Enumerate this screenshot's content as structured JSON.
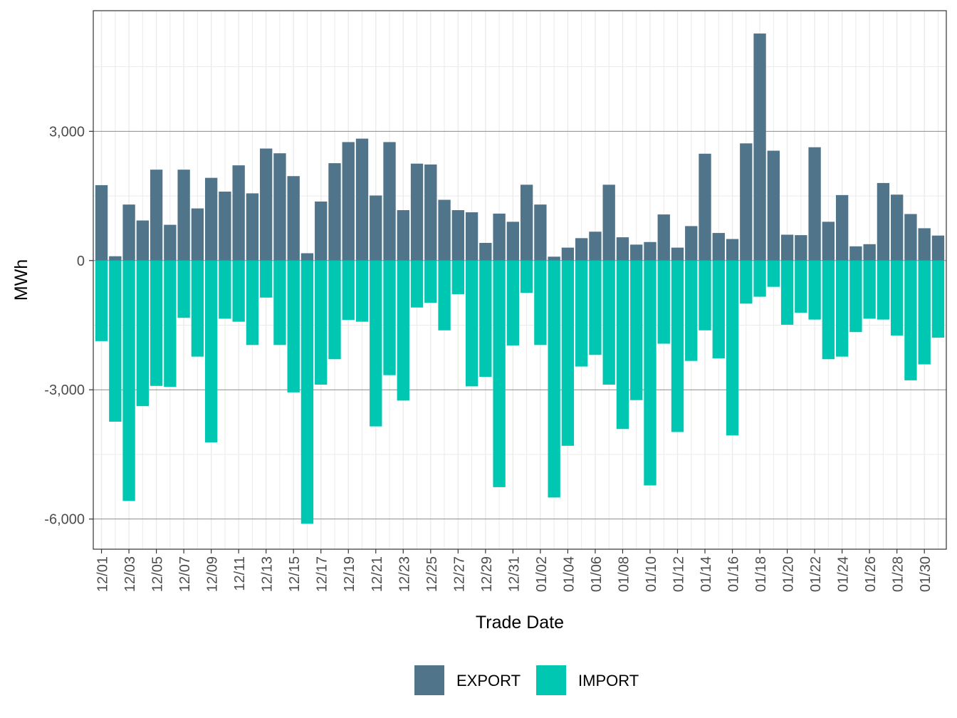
{
  "chart_data": {
    "type": "bar",
    "xlabel": "Trade Date",
    "ylabel": "MWh",
    "ylim": [
      -6700,
      5800
    ],
    "yticks": [
      3000,
      0,
      -3000,
      -6000
    ],
    "ytick_labels": [
      "3,000",
      "0",
      "-3,000",
      "-6,000"
    ],
    "categories": [
      "12/01",
      "12/02",
      "12/03",
      "12/04",
      "12/05",
      "12/06",
      "12/07",
      "12/08",
      "12/09",
      "12/10",
      "12/11",
      "12/12",
      "12/13",
      "12/14",
      "12/15",
      "12/16",
      "12/17",
      "12/18",
      "12/19",
      "12/20",
      "12/21",
      "12/22",
      "12/23",
      "12/24",
      "12/25",
      "12/26",
      "12/27",
      "12/28",
      "12/29",
      "12/30",
      "12/31",
      "01/01",
      "01/02",
      "01/03",
      "01/04",
      "01/05",
      "01/06",
      "01/07",
      "01/08",
      "01/09",
      "01/10",
      "01/11",
      "01/12",
      "01/13",
      "01/14",
      "01/15",
      "01/16",
      "01/17",
      "01/18",
      "01/19",
      "01/20",
      "01/21",
      "01/22",
      "01/23",
      "01/24",
      "01/25",
      "01/26",
      "01/27",
      "01/28",
      "01/29",
      "01/30",
      "01/31"
    ],
    "xtick_labels": [
      "12/01",
      "12/03",
      "12/05",
      "12/07",
      "12/09",
      "12/11",
      "12/13",
      "12/15",
      "12/17",
      "12/19",
      "12/21",
      "12/23",
      "12/25",
      "12/27",
      "12/29",
      "12/31",
      "01/02",
      "01/04",
      "01/06",
      "01/08",
      "01/10",
      "01/12",
      "01/14",
      "01/16",
      "01/18",
      "01/20",
      "01/22",
      "01/24",
      "01/26",
      "01/28",
      "01/30"
    ],
    "series": [
      {
        "name": "EXPORT",
        "color": "#50748a",
        "values": [
          1750,
          100,
          1300,
          930,
          2110,
          830,
          2110,
          1210,
          1920,
          1600,
          2210,
          1560,
          2600,
          2490,
          1960,
          170,
          1370,
          2260,
          2750,
          2830,
          1510,
          2750,
          1170,
          2250,
          2230,
          1410,
          1170,
          1120,
          410,
          1090,
          900,
          1760,
          1300,
          90,
          300,
          520,
          670,
          1760,
          540,
          370,
          430,
          1070,
          300,
          800,
          2480,
          640,
          500,
          2720,
          5270,
          2550,
          600,
          590,
          2630,
          900,
          1520,
          330,
          380,
          1800,
          1530,
          1080,
          750,
          580
        ]
      },
      {
        "name": "IMPORT",
        "color": "#00c7b1",
        "values": [
          -1870,
          -3740,
          -5580,
          -3380,
          -2910,
          -2930,
          -1330,
          -2230,
          -4220,
          -1350,
          -1420,
          -1960,
          -860,
          -1960,
          -3060,
          -6110,
          -2880,
          -2290,
          -1380,
          -1420,
          -3850,
          -2660,
          -3250,
          -1090,
          -980,
          -1620,
          -780,
          -2920,
          -2700,
          -5260,
          -1970,
          -750,
          -1960,
          -5500,
          -4300,
          -2460,
          -2190,
          -2880,
          -3910,
          -3240,
          -5220,
          -1930,
          -3980,
          -2330,
          -1620,
          -2270,
          -4060,
          -1000,
          -840,
          -610,
          -1490,
          -1210,
          -1370,
          -2290,
          -2230,
          -1660,
          -1350,
          -1370,
          -1740,
          -2780,
          -2410,
          -1790
        ]
      }
    ],
    "legend_position": "bottom",
    "grid": true
  }
}
